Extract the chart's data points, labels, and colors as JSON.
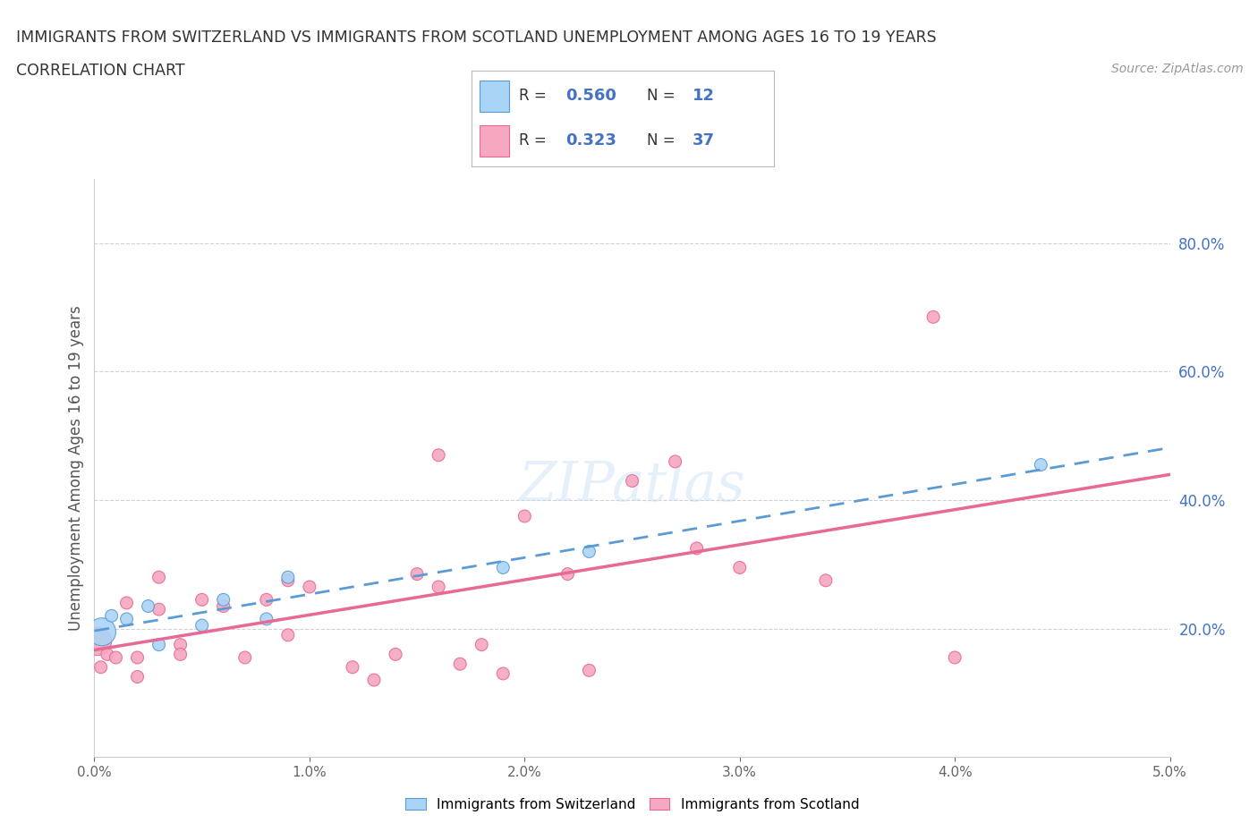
{
  "title_line1": "IMMIGRANTS FROM SWITZERLAND VS IMMIGRANTS FROM SCOTLAND UNEMPLOYMENT AMONG AGES 16 TO 19 YEARS",
  "title_line2": "CORRELATION CHART",
  "source": "Source: ZipAtlas.com",
  "ylabel": "Unemployment Among Ages 16 to 19 years",
  "xlim": [
    0.0,
    0.05
  ],
  "ylim": [
    0.0,
    0.9
  ],
  "xticks": [
    0.0,
    0.01,
    0.02,
    0.03,
    0.04,
    0.05
  ],
  "xticklabels": [
    "0.0%",
    "1.0%",
    "2.0%",
    "3.0%",
    "4.0%",
    "5.0%"
  ],
  "yticks": [
    0.0,
    0.2,
    0.4,
    0.6,
    0.8
  ],
  "yticklabels": [
    "",
    "20.0%",
    "40.0%",
    "60.0%",
    "80.0%"
  ],
  "switzerland_color": "#aad4f5",
  "scotland_color": "#f5a8c0",
  "switzerland_edge": "#5b9bd5",
  "scotland_edge": "#e86896",
  "trend_switzerland_color": "#5b9bd5",
  "trend_scotland_color": "#e86896",
  "R_switzerland": "0.560",
  "N_switzerland": "12",
  "R_scotland": "0.323",
  "N_scotland": "37",
  "watermark": "ZIPatlas",
  "legend_labels": [
    "Immigrants from Switzerland",
    "Immigrants from Scotland"
  ],
  "switzerland_x": [
    0.00035,
    0.0008,
    0.0015,
    0.0025,
    0.003,
    0.005,
    0.006,
    0.008,
    0.009,
    0.019,
    0.023,
    0.044
  ],
  "switzerland_y": [
    0.195,
    0.22,
    0.215,
    0.235,
    0.175,
    0.205,
    0.245,
    0.215,
    0.28,
    0.295,
    0.32,
    0.455
  ],
  "switzerland_size": [
    500,
    100,
    100,
    100,
    100,
    100,
    100,
    100,
    100,
    100,
    100,
    100
  ],
  "scotland_x": [
    0.00015,
    0.0003,
    0.0006,
    0.001,
    0.0015,
    0.002,
    0.002,
    0.003,
    0.004,
    0.004,
    0.005,
    0.006,
    0.007,
    0.008,
    0.009,
    0.009,
    0.01,
    0.012,
    0.013,
    0.014,
    0.015,
    0.016,
    0.017,
    0.018,
    0.019,
    0.02,
    0.022,
    0.023,
    0.025,
    0.027,
    0.028,
    0.03,
    0.034,
    0.039,
    0.04,
    0.003,
    0.016
  ],
  "scotland_y": [
    0.18,
    0.14,
    0.16,
    0.155,
    0.24,
    0.155,
    0.125,
    0.23,
    0.175,
    0.16,
    0.245,
    0.235,
    0.155,
    0.245,
    0.19,
    0.275,
    0.265,
    0.14,
    0.12,
    0.16,
    0.285,
    0.265,
    0.145,
    0.175,
    0.13,
    0.375,
    0.285,
    0.135,
    0.43,
    0.46,
    0.325,
    0.295,
    0.275,
    0.685,
    0.155,
    0.28,
    0.47
  ],
  "scotland_size": [
    500,
    100,
    100,
    100,
    100,
    100,
    100,
    100,
    100,
    100,
    100,
    100,
    100,
    100,
    100,
    100,
    100,
    100,
    100,
    100,
    100,
    100,
    100,
    100,
    100,
    100,
    100,
    100,
    100,
    100,
    100,
    100,
    100,
    100,
    100,
    100,
    100
  ],
  "background_color": "#ffffff",
  "grid_color": "#d0d0d0",
  "tick_color": "#4472C4",
  "axis_color": "#cccccc"
}
